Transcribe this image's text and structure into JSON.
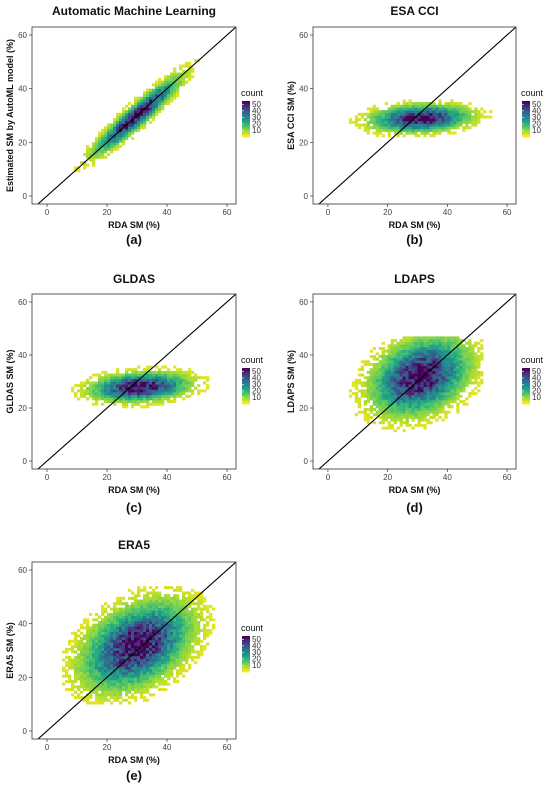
{
  "colors": {
    "viridis": [
      "#fde725",
      "#b5de2b",
      "#6ece58",
      "#35b779",
      "#1f9e89",
      "#26828e",
      "#31688e",
      "#3e4989",
      "#482878",
      "#440154"
    ],
    "identity_line": "#000000",
    "frame": "#333333"
  },
  "chart_data": [
    {
      "type": "heatmap",
      "title": "Automatic Machine Learning",
      "xlabel": "RDA SM (%)",
      "ylabel": "Estimated SM by AutoML model (%)",
      "xlim": [
        -5,
        63
      ],
      "ylim": [
        -3,
        63
      ],
      "xticks": [
        0,
        20,
        40,
        60
      ],
      "yticks": [
        0,
        20,
        40,
        60
      ],
      "xtick_labels": [
        "0",
        "20",
        "40",
        "60"
      ],
      "ytick_labels": [
        "0",
        "20",
        "40",
        "60"
      ],
      "identity_line": true,
      "panel_label": "(a)",
      "legend": {
        "title": "count",
        "breaks": [
          50,
          40,
          30,
          20,
          10
        ],
        "labels": [
          "50",
          "40",
          "30",
          "20",
          "10"
        ],
        "max": 55,
        "placement": "right"
      },
      "density": {
        "cx": 30,
        "cy": 30,
        "sx": 8,
        "sy": 8,
        "rho": 0.94,
        "xrange": [
          7,
          56
        ],
        "yrange": [
          8,
          56
        ],
        "peak": 55
      },
      "identity": {
        "from": [
          -5,
          -5
        ],
        "to": [
          63,
          63
        ]
      }
    },
    {
      "type": "heatmap",
      "title": "ESA CCI",
      "xlabel": "RDA SM (%)",
      "ylabel": "ESA CCI SM (%)",
      "xlim": [
        -5,
        63
      ],
      "ylim": [
        -3,
        63
      ],
      "xticks": [
        0,
        20,
        40,
        60
      ],
      "yticks": [
        0,
        20,
        40,
        60
      ],
      "xtick_labels": [
        "0",
        "20",
        "40",
        "60"
      ],
      "ytick_labels": [
        "0",
        "20",
        "40",
        "60"
      ],
      "identity_line": true,
      "panel_label": "(b)",
      "legend": {
        "title": "count",
        "breaks": [
          50,
          40,
          30,
          20,
          10
        ],
        "labels": [
          "50",
          "40",
          "30",
          "20",
          "10"
        ],
        "max": 55,
        "placement": "right"
      },
      "density": {
        "cx": 31,
        "cy": 29,
        "sx": 9,
        "sy": 2.8,
        "rho": 0.15,
        "xrange": [
          4,
          56
        ],
        "yrange": [
          20,
          37
        ],
        "peak": 55
      },
      "identity": {
        "from": [
          -5,
          -5
        ],
        "to": [
          63,
          63
        ]
      }
    },
    {
      "type": "heatmap",
      "title": "GLDAS",
      "xlabel": "RDA SM (%)",
      "ylabel": "GLDAS SM (%)",
      "xlim": [
        -5,
        63
      ],
      "ylim": [
        -3,
        63
      ],
      "xticks": [
        0,
        20,
        40,
        60
      ],
      "yticks": [
        0,
        20,
        40,
        60
      ],
      "xtick_labels": [
        "0",
        "20",
        "40",
        "60"
      ],
      "ytick_labels": [
        "0",
        "20",
        "40",
        "60"
      ],
      "identity_line": true,
      "panel_label": "(c)",
      "legend": {
        "title": "count",
        "breaks": [
          50,
          40,
          30,
          20,
          10
        ],
        "labels": [
          "50",
          "40",
          "30",
          "20",
          "10"
        ],
        "max": 55,
        "placement": "right"
      },
      "density": {
        "cx": 31,
        "cy": 28,
        "sx": 9,
        "sy": 3,
        "rho": 0.2,
        "xrange": [
          3,
          56
        ],
        "yrange": [
          19,
          40
        ],
        "peak": 55
      },
      "identity": {
        "from": [
          -5,
          -5
        ],
        "to": [
          63,
          63
        ]
      }
    },
    {
      "type": "heatmap",
      "title": "LDAPS",
      "xlabel": "RDA SM (%)",
      "ylabel": "LDAPS SM (%)",
      "xlim": [
        -5,
        63
      ],
      "ylim": [
        -3,
        63
      ],
      "xticks": [
        0,
        20,
        40,
        60
      ],
      "yticks": [
        0,
        20,
        40,
        60
      ],
      "xtick_labels": [
        "0",
        "20",
        "40",
        "60"
      ],
      "ytick_labels": [
        "0",
        "20",
        "40",
        "60"
      ],
      "identity_line": true,
      "panel_label": "(d)",
      "legend": {
        "title": "count",
        "breaks": [
          50,
          40,
          30,
          20,
          10
        ],
        "labels": [
          "50",
          "40",
          "30",
          "20",
          "10"
        ],
        "max": 55,
        "placement": "right"
      },
      "density": {
        "cx": 31,
        "cy": 32,
        "sx": 9,
        "sy": 8,
        "rho": 0.3,
        "xrange": [
          5,
          52
        ],
        "yrange": [
          8,
          47
        ],
        "peak": 55
      },
      "identity": {
        "from": [
          -5,
          -5
        ],
        "to": [
          63,
          63
        ]
      }
    },
    {
      "type": "heatmap",
      "title": "ERA5",
      "xlabel": "RDA SM (%)",
      "ylabel": "ERA5 SM (%)",
      "xlim": [
        -5,
        63
      ],
      "ylim": [
        -3,
        63
      ],
      "xticks": [
        0,
        20,
        40,
        60
      ],
      "yticks": [
        0,
        20,
        40,
        60
      ],
      "xtick_labels": [
        "0",
        "20",
        "40",
        "60"
      ],
      "ytick_labels": [
        "0",
        "20",
        "40",
        "60"
      ],
      "identity_line": true,
      "panel_label": "(e)",
      "legend": {
        "title": "count",
        "breaks": [
          50,
          40,
          30,
          20,
          10
        ],
        "labels": [
          "50",
          "40",
          "30",
          "20",
          "10"
        ],
        "max": 55,
        "placement": "right"
      },
      "density": {
        "cx": 30,
        "cy": 32,
        "sx": 10,
        "sy": 9,
        "rho": 0.4,
        "xrange": [
          5,
          56
        ],
        "yrange": [
          10,
          54
        ],
        "peak": 55
      },
      "identity": {
        "from": [
          -5,
          -5
        ],
        "to": [
          63,
          63
        ]
      }
    }
  ]
}
